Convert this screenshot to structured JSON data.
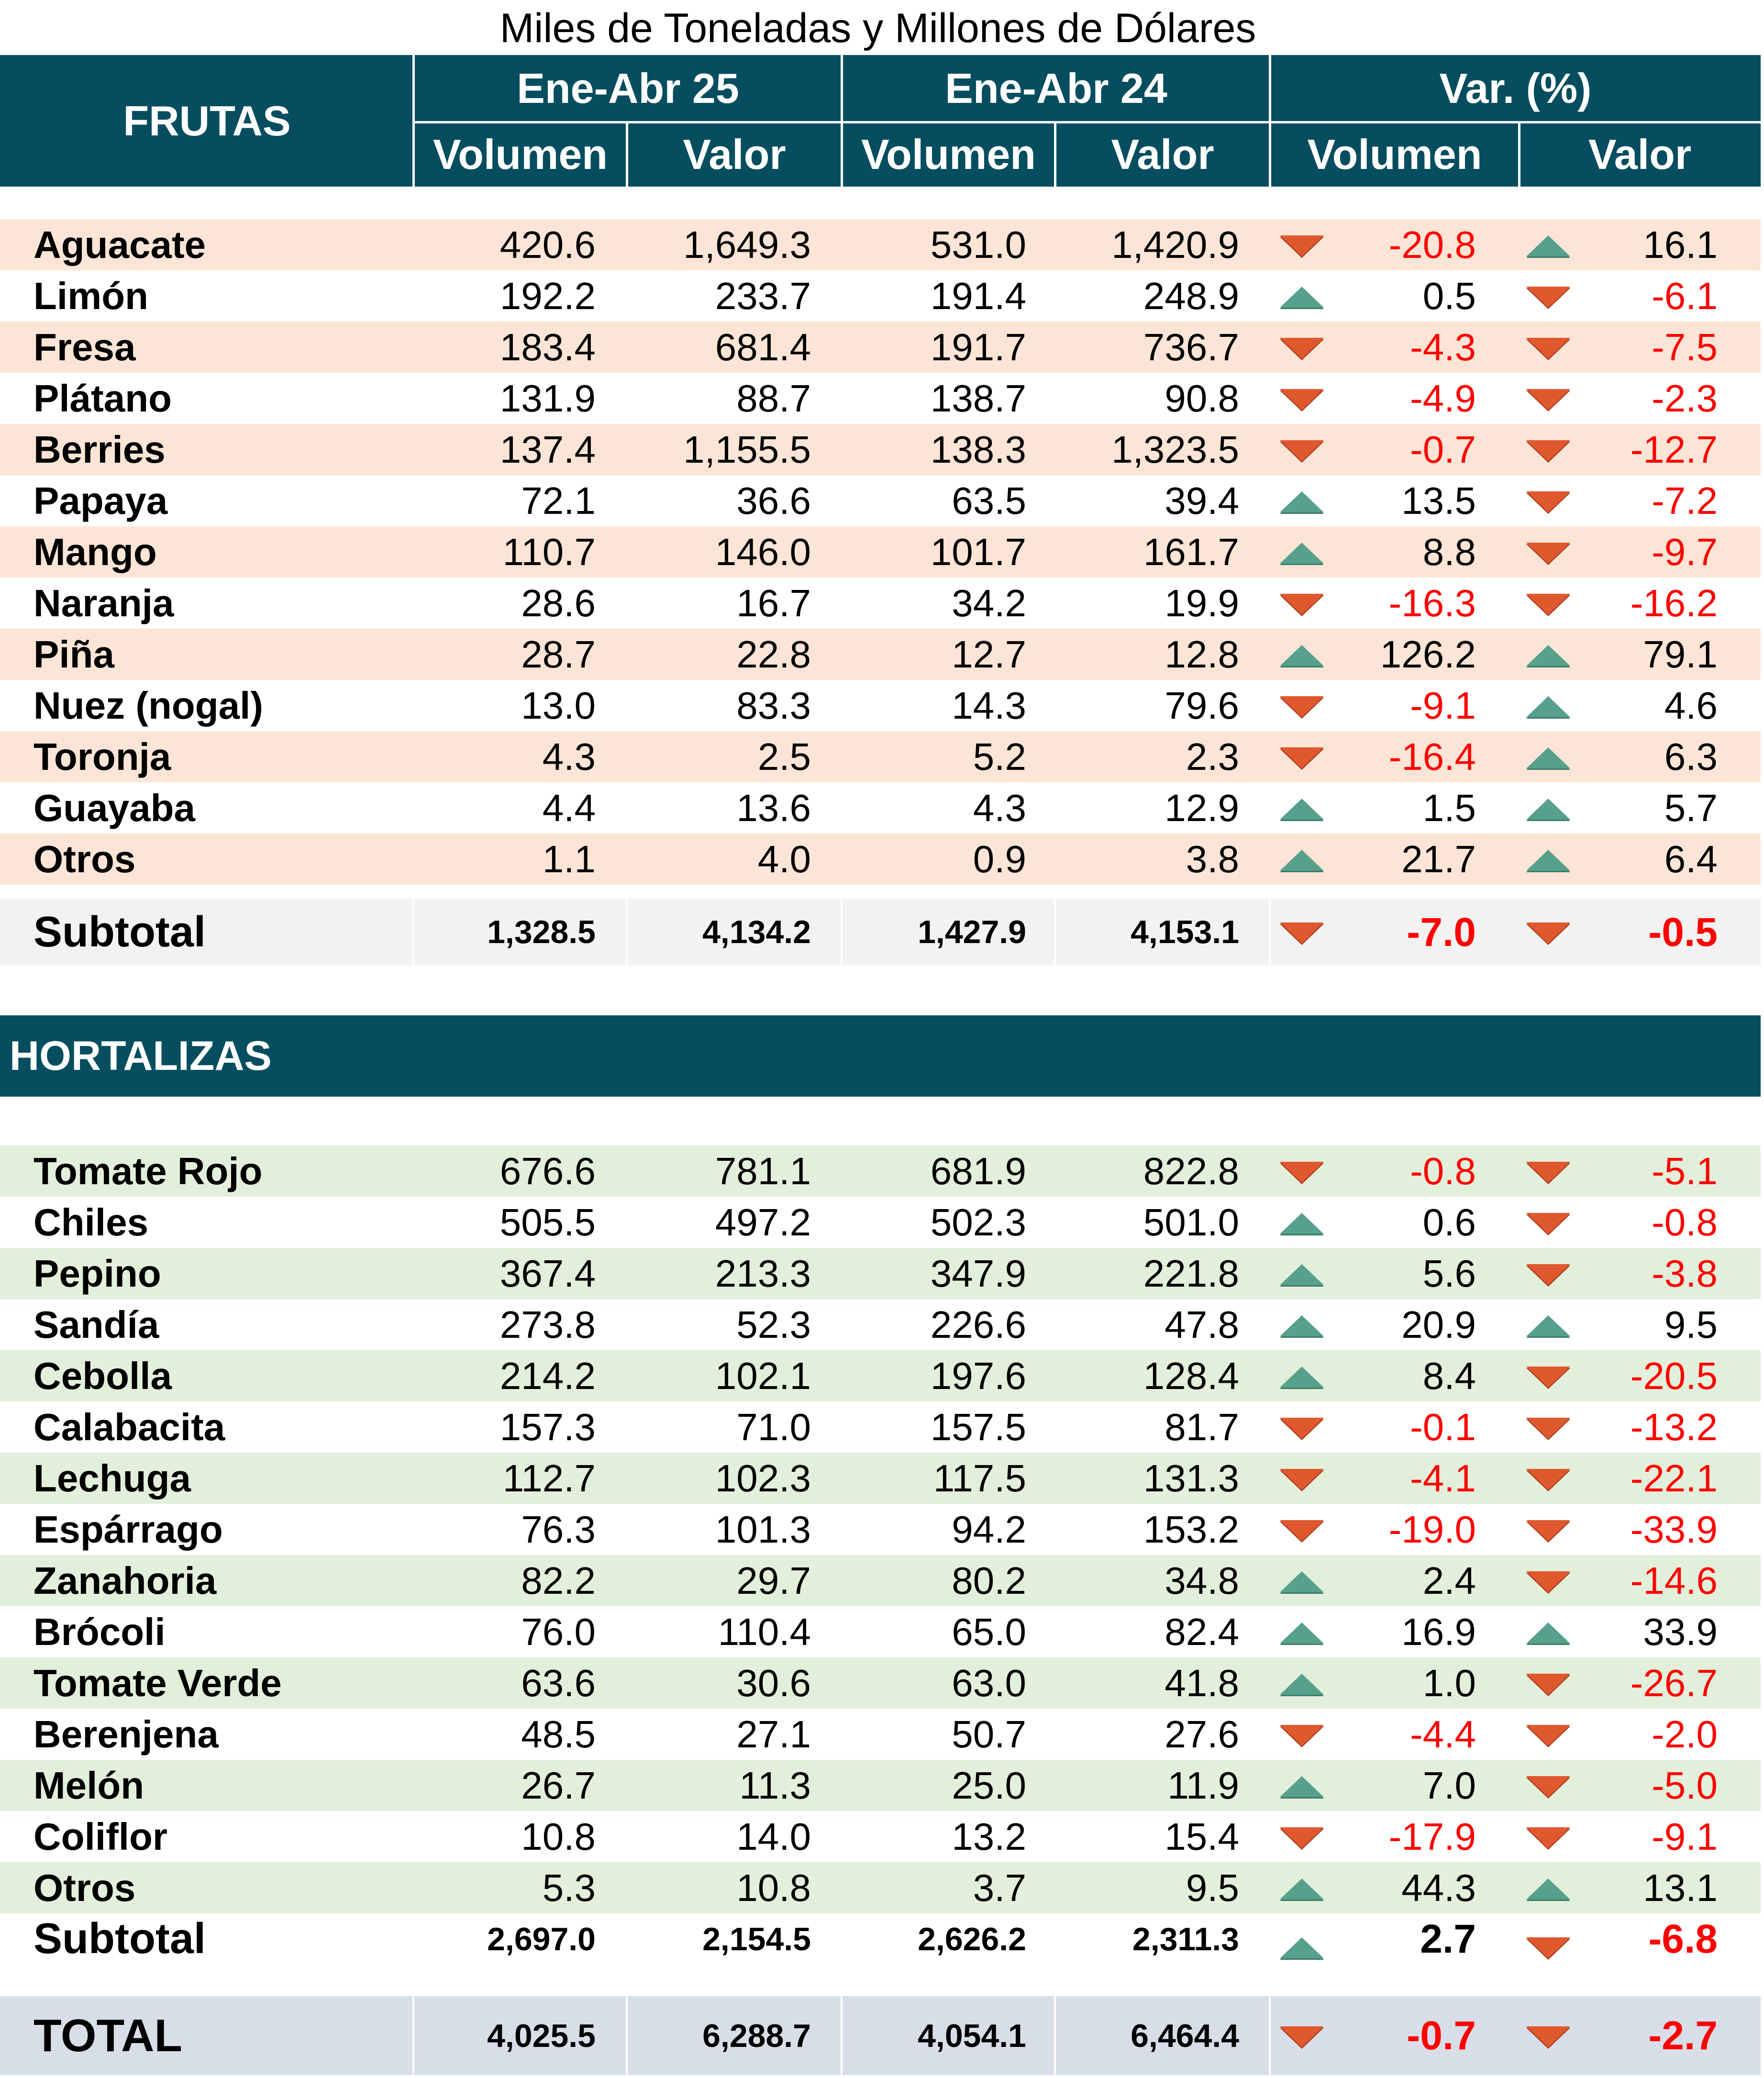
{
  "title": "Miles de Toneladas y Millones de Dólares",
  "header": {
    "section": "FRUTAS",
    "period1": "Ene-Abr 25",
    "period2": "Ene-Abr 24",
    "var": "Var. (%)",
    "vol": "Volumen",
    "val": "Valor"
  },
  "frutas": [
    {
      "name": "Aguacate",
      "v25": "420.6",
      "val25": "1,649.3",
      "v24": "531.0",
      "val24": "1,420.9",
      "dvol": "down",
      "pvol": "-20.8",
      "dval": "up",
      "pval": "16.1"
    },
    {
      "name": "Limón",
      "v25": "192.2",
      "val25": "233.7",
      "v24": "191.4",
      "val24": "248.9",
      "dvol": "up",
      "pvol": "0.5",
      "dval": "down",
      "pval": "-6.1"
    },
    {
      "name": "Fresa",
      "v25": "183.4",
      "val25": "681.4",
      "v24": "191.7",
      "val24": "736.7",
      "dvol": "down",
      "pvol": "-4.3",
      "dval": "down",
      "pval": "-7.5"
    },
    {
      "name": "Plátano",
      "v25": "131.9",
      "val25": "88.7",
      "v24": "138.7",
      "val24": "90.8",
      "dvol": "down",
      "pvol": "-4.9",
      "dval": "down",
      "pval": "-2.3"
    },
    {
      "name": "Berries",
      "v25": "137.4",
      "val25": "1,155.5",
      "v24": "138.3",
      "val24": "1,323.5",
      "dvol": "down",
      "pvol": "-0.7",
      "dval": "down",
      "pval": "-12.7"
    },
    {
      "name": "Papaya",
      "v25": "72.1",
      "val25": "36.6",
      "v24": "63.5",
      "val24": "39.4",
      "dvol": "up",
      "pvol": "13.5",
      "dval": "down",
      "pval": "-7.2"
    },
    {
      "name": "Mango",
      "v25": "110.7",
      "val25": "146.0",
      "v24": "101.7",
      "val24": "161.7",
      "dvol": "up",
      "pvol": "8.8",
      "dval": "down",
      "pval": "-9.7"
    },
    {
      "name": "Naranja",
      "v25": "28.6",
      "val25": "16.7",
      "v24": "34.2",
      "val24": "19.9",
      "dvol": "down",
      "pvol": "-16.3",
      "dval": "down",
      "pval": "-16.2"
    },
    {
      "name": "Piña",
      "v25": "28.7",
      "val25": "22.8",
      "v24": "12.7",
      "val24": "12.8",
      "dvol": "up",
      "pvol": "126.2",
      "dval": "up",
      "pval": "79.1"
    },
    {
      "name": "Nuez (nogal)",
      "v25": "13.0",
      "val25": "83.3",
      "v24": "14.3",
      "val24": "79.6",
      "dvol": "down",
      "pvol": "-9.1",
      "dval": "up",
      "pval": "4.6"
    },
    {
      "name": "Toronja",
      "v25": "4.3",
      "val25": "2.5",
      "v24": "5.2",
      "val24": "2.3",
      "dvol": "down",
      "pvol": "-16.4",
      "dval": "up",
      "pval": "6.3"
    },
    {
      "name": "Guayaba",
      "v25": "4.4",
      "val25": "13.6",
      "v24": "4.3",
      "val24": "12.9",
      "dvol": "up",
      "pvol": "1.5",
      "dval": "up",
      "pval": "5.7"
    },
    {
      "name": "Otros",
      "v25": "1.1",
      "val25": "4.0",
      "v24": "0.9",
      "val24": "3.8",
      "dvol": "up",
      "pvol": "21.7",
      "dval": "up",
      "pval": "6.4"
    }
  ],
  "frutas_subtotal": {
    "name": "Subtotal",
    "v25": "1,328.5",
    "val25": "4,134.2",
    "v24": "1,427.9",
    "val24": "4,153.1",
    "dvol": "down",
    "pvol": "-7.0",
    "dval": "down",
    "pval": "-0.5"
  },
  "hortalizas_label": "HORTALIZAS",
  "hortalizas": [
    {
      "name": "Tomate Rojo",
      "v25": "676.6",
      "val25": "781.1",
      "v24": "681.9",
      "val24": "822.8",
      "dvol": "down",
      "pvol": "-0.8",
      "dval": "down",
      "pval": "-5.1"
    },
    {
      "name": "Chiles",
      "v25": "505.5",
      "val25": "497.2",
      "v24": "502.3",
      "val24": "501.0",
      "dvol": "up",
      "pvol": "0.6",
      "dval": "down",
      "pval": "-0.8"
    },
    {
      "name": "Pepino",
      "v25": "367.4",
      "val25": "213.3",
      "v24": "347.9",
      "val24": "221.8",
      "dvol": "up",
      "pvol": "5.6",
      "dval": "down",
      "pval": "-3.8"
    },
    {
      "name": "Sandía",
      "v25": "273.8",
      "val25": "52.3",
      "v24": "226.6",
      "val24": "47.8",
      "dvol": "up",
      "pvol": "20.9",
      "dval": "up",
      "pval": "9.5"
    },
    {
      "name": "Cebolla",
      "v25": "214.2",
      "val25": "102.1",
      "v24": "197.6",
      "val24": "128.4",
      "dvol": "up",
      "pvol": "8.4",
      "dval": "down",
      "pval": "-20.5"
    },
    {
      "name": "Calabacita",
      "v25": "157.3",
      "val25": "71.0",
      "v24": "157.5",
      "val24": "81.7",
      "dvol": "down",
      "pvol": "-0.1",
      "dval": "down",
      "pval": "-13.2"
    },
    {
      "name": "Lechuga",
      "v25": "112.7",
      "val25": "102.3",
      "v24": "117.5",
      "val24": "131.3",
      "dvol": "down",
      "pvol": "-4.1",
      "dval": "down",
      "pval": "-22.1"
    },
    {
      "name": "Espárrago",
      "v25": "76.3",
      "val25": "101.3",
      "v24": "94.2",
      "val24": "153.2",
      "dvol": "down",
      "pvol": "-19.0",
      "dval": "down",
      "pval": "-33.9"
    },
    {
      "name": "Zanahoria",
      "v25": "82.2",
      "val25": "29.7",
      "v24": "80.2",
      "val24": "34.8",
      "dvol": "up",
      "pvol": "2.4",
      "dval": "down",
      "pval": "-14.6"
    },
    {
      "name": "Brócoli",
      "v25": "76.0",
      "val25": "110.4",
      "v24": "65.0",
      "val24": "82.4",
      "dvol": "up",
      "pvol": "16.9",
      "dval": "up",
      "pval": "33.9"
    },
    {
      "name": "Tomate Verde",
      "v25": "63.6",
      "val25": "30.6",
      "v24": "63.0",
      "val24": "41.8",
      "dvol": "up",
      "pvol": "1.0",
      "dval": "down",
      "pval": "-26.7"
    },
    {
      "name": "Berenjena",
      "v25": "48.5",
      "val25": "27.1",
      "v24": "50.7",
      "val24": "27.6",
      "dvol": "down",
      "pvol": "-4.4",
      "dval": "down",
      "pval": "-2.0"
    },
    {
      "name": "Melón",
      "v25": "26.7",
      "val25": "11.3",
      "v24": "25.0",
      "val24": "11.9",
      "dvol": "up",
      "pvol": "7.0",
      "dval": "down",
      "pval": "-5.0"
    },
    {
      "name": "Coliflor",
      "v25": "10.8",
      "val25": "14.0",
      "v24": "13.2",
      "val24": "15.4",
      "dvol": "down",
      "pvol": "-17.9",
      "dval": "down",
      "pval": "-9.1"
    },
    {
      "name": "Otros",
      "v25": "5.3",
      "val25": "10.8",
      "v24": "3.7",
      "val24": "9.5",
      "dvol": "up",
      "pvol": "44.3",
      "dval": "up",
      "pval": "13.1"
    }
  ],
  "hortalizas_subtotal": {
    "name": "Subtotal",
    "v25": "2,697.0",
    "val25": "2,154.5",
    "v24": "2,626.2",
    "val24": "2,311.3",
    "dvol": "up",
    "pvol": "2.7",
    "dval": "down",
    "pval": "-6.8"
  },
  "total": {
    "name": "TOTAL",
    "v25": "4,025.5",
    "val25": "6,288.7",
    "v24": "4,054.1",
    "val24": "6,464.4",
    "dvol": "down",
    "pvol": "-0.7",
    "dval": "down",
    "pval": "-2.7"
  },
  "colors": {
    "header_bg": "#064e5f",
    "fruit_stripe": "#fce5d6",
    "veg_stripe": "#e2efdb",
    "up_arrow": "#57a18c",
    "down_arrow": "#e0582e",
    "negative": "#ff0000"
  }
}
